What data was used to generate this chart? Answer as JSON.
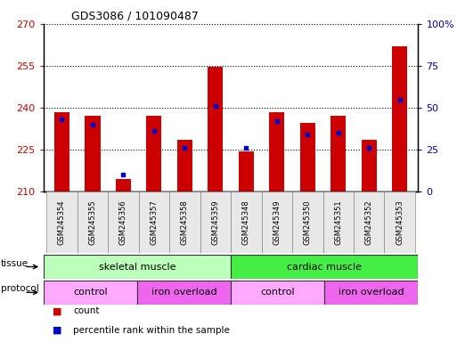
{
  "title": "GDS3086 / 101090487",
  "samples": [
    "GSM245354",
    "GSM245355",
    "GSM245356",
    "GSM245357",
    "GSM245358",
    "GSM245359",
    "GSM245348",
    "GSM245349",
    "GSM245350",
    "GSM245351",
    "GSM245352",
    "GSM245353"
  ],
  "count_values": [
    238.5,
    237.0,
    214.5,
    237.0,
    228.5,
    254.5,
    224.5,
    238.5,
    234.5,
    237.0,
    228.5,
    262.0
  ],
  "percentile_values": [
    43,
    40,
    10,
    36,
    26,
    51,
    26,
    42,
    34,
    35,
    26,
    55
  ],
  "y_min": 210,
  "y_max": 270,
  "y_ticks": [
    210,
    225,
    240,
    255,
    270
  ],
  "y2_ticks": [
    0,
    25,
    50,
    75,
    100
  ],
  "y2_labels": [
    "0",
    "25",
    "50",
    "75",
    "100%"
  ],
  "bar_color": "#cc0000",
  "blue_color": "#0000cc",
  "tissue_groups": [
    {
      "label": "skeletal muscle",
      "start": 0,
      "end": 6,
      "color": "#bbffbb"
    },
    {
      "label": "cardiac muscle",
      "start": 6,
      "end": 12,
      "color": "#44ee44"
    }
  ],
  "protocol_groups": [
    {
      "label": "control",
      "start": 0,
      "end": 3,
      "color": "#ffaaff"
    },
    {
      "label": "iron overload",
      "start": 3,
      "end": 6,
      "color": "#ee66ee"
    },
    {
      "label": "control",
      "start": 6,
      "end": 9,
      "color": "#ffaaff"
    },
    {
      "label": "iron overload",
      "start": 9,
      "end": 12,
      "color": "#ee66ee"
    }
  ],
  "legend_count_color": "#cc0000",
  "legend_pct_color": "#0000cc",
  "tick_color_left": "#cc0000",
  "tick_color_right": "#0000aa",
  "tissue_label": "tissue",
  "protocol_label": "protocol",
  "legend1": "count",
  "legend2": "percentile rank within the sample"
}
